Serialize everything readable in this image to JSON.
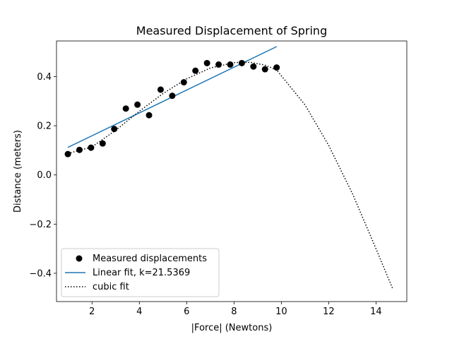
{
  "chart_data": {
    "type": "scatter",
    "title": "Measured Displacement of Spring",
    "xlabel": "|Force| (Newtons)",
    "ylabel": "Distance (meters)",
    "xlim": [
      0.5,
      15.3
    ],
    "ylim": [
      -0.515,
      0.545
    ],
    "xticks": [
      2,
      4,
      6,
      8,
      10,
      12,
      14
    ],
    "yticks": [
      -0.4,
      -0.2,
      0.0,
      0.2,
      0.4
    ],
    "grid": false,
    "legend_position": "lower-left",
    "colors": {
      "points": "#000000",
      "linear": "#1f77b4",
      "cubic": "#000000"
    },
    "series": [
      {
        "name": "Measured displacements",
        "style": "markers",
        "x": [
          0.98,
          1.47,
          1.96,
          2.45,
          2.94,
          3.43,
          3.92,
          4.41,
          4.9,
          5.39,
          5.88,
          6.37,
          6.86,
          7.35,
          7.84,
          8.33,
          8.82,
          9.31,
          9.8
        ],
        "y": [
          0.085,
          0.102,
          0.111,
          0.128,
          0.187,
          0.27,
          0.286,
          0.243,
          0.347,
          0.322,
          0.377,
          0.424,
          0.455,
          0.449,
          0.449,
          0.455,
          0.441,
          0.43,
          0.437
        ]
      },
      {
        "name": "Linear fit, k=21.5369",
        "style": "solid-line",
        "x": [
          0.98,
          9.8
        ],
        "y": [
          0.112,
          0.522
        ]
      },
      {
        "name": "cubic fit",
        "style": "dotted-line",
        "x": [
          0.98,
          2.0,
          3.0,
          4.0,
          5.0,
          6.0,
          7.0,
          8.0,
          8.7,
          9.3,
          9.8,
          11.0,
          12.0,
          13.0,
          14.0,
          14.7
        ],
        "y": [
          0.087,
          0.114,
          0.182,
          0.259,
          0.331,
          0.391,
          0.435,
          0.457,
          0.458,
          0.447,
          0.427,
          0.285,
          0.12,
          -0.075,
          -0.3,
          -0.462
        ]
      }
    ]
  }
}
